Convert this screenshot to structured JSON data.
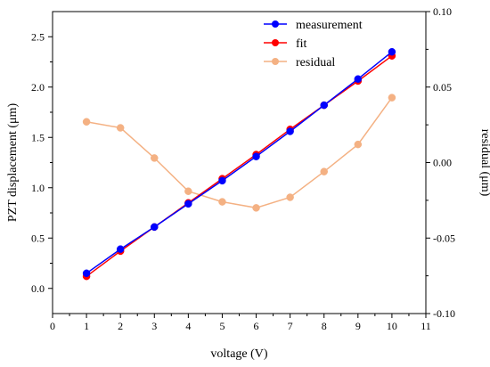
{
  "chart_data": {
    "type": "line",
    "xlabel": "voltage (V)",
    "ylabel_left": "PZT displacement (μm)",
    "ylabel_right": "residual (μm)",
    "xlim": [
      0,
      11
    ],
    "ylim_left": [
      -0.25,
      2.75
    ],
    "ylim_right": [
      -0.1,
      0.1
    ],
    "x_ticks": [
      "0",
      "1",
      "2",
      "3",
      "4",
      "5",
      "6",
      "7",
      "8",
      "9",
      "10",
      "11"
    ],
    "y_left_ticks": [
      "0.0",
      "0.5",
      "1.0",
      "1.5",
      "2.0",
      "2.5"
    ],
    "y_right_ticks": [
      "-0.10",
      "-0.05",
      "0.00",
      "0.05",
      "0.10"
    ],
    "grid": false,
    "legend_position": "top-center",
    "x": [
      1,
      2,
      3,
      4,
      5,
      6,
      7,
      8,
      9,
      10
    ],
    "series": [
      {
        "name": "measurement",
        "axis": "left",
        "color": "#0000ff",
        "values": [
          0.15,
          0.39,
          0.61,
          0.84,
          1.07,
          1.31,
          1.56,
          1.82,
          2.08,
          2.35
        ]
      },
      {
        "name": "fit",
        "axis": "left",
        "color": "#ff0000",
        "values": [
          0.12,
          0.37,
          0.61,
          0.85,
          1.09,
          1.33,
          1.58,
          1.82,
          2.06,
          2.31
        ]
      },
      {
        "name": "residual",
        "axis": "right",
        "color": "#f4b183",
        "values": [
          0.027,
          0.023,
          0.003,
          -0.019,
          -0.026,
          -0.03,
          -0.023,
          -0.006,
          0.012,
          0.043
        ]
      }
    ]
  }
}
